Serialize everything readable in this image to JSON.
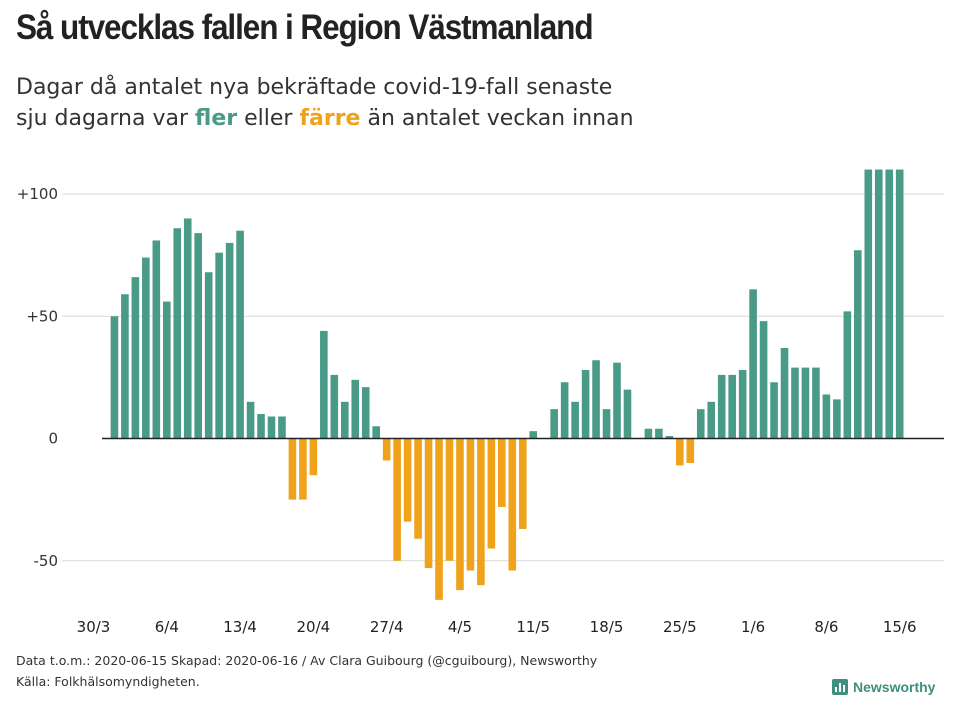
{
  "header": {
    "title": "Så utvecklas fallen i Region Västmanland",
    "subtitle_line1": "Dagar då antalet nya bekräftade covid-19-fall senaste",
    "subtitle_pre": "sju dagarna var ",
    "subtitle_fler": "fler",
    "subtitle_mid": " eller ",
    "subtitle_farre": "färre",
    "subtitle_post": " än antalet veckan innan"
  },
  "colors": {
    "positive": "#4a9a88",
    "negative": "#f0a21a",
    "grid": "#d9d9d9",
    "zero": "#222222"
  },
  "chart_data": {
    "type": "bar",
    "title": "Så utvecklas fallen i Region Västmanland",
    "xlabel": "",
    "ylabel": "",
    "ylim": [
      -67,
      110
    ],
    "yticks": [
      100,
      50,
      0,
      -50
    ],
    "ytick_labels": [
      "+100",
      "+50",
      "0",
      "-50"
    ],
    "xtick_labels": [
      "30/3",
      "6/4",
      "13/4",
      "20/4",
      "27/4",
      "4/5",
      "11/5",
      "18/5",
      "25/5",
      "1/6",
      "8/6",
      "15/6"
    ],
    "xtick_day_index": [
      0,
      7,
      14,
      21,
      28,
      35,
      42,
      49,
      56,
      63,
      70,
      77
    ],
    "start_day_index": 2,
    "values": [
      50,
      59,
      66,
      74,
      81,
      56,
      86,
      90,
      84,
      68,
      76,
      80,
      85,
      15,
      10,
      9,
      9,
      -25,
      -25,
      -15,
      44,
      26,
      15,
      24,
      21,
      5,
      -9,
      -50,
      -34,
      -41,
      -53,
      -66,
      -50,
      -62,
      -54,
      -60,
      -45,
      -28,
      -54,
      -37,
      3,
      0,
      12,
      23,
      15,
      28,
      32,
      12,
      31,
      20,
      0,
      4,
      4,
      1,
      -11,
      -10,
      12,
      15,
      26,
      26,
      28,
      61,
      48,
      23,
      37,
      29,
      29,
      29,
      18,
      16,
      52,
      77,
      110,
      110,
      110,
      110
    ]
  },
  "footer": {
    "line1": "Data t.o.m.: 2020-06-15 Skapad: 2020-06-16 / Av Clara Guibourg (@cguibourg), Newsworthy",
    "line2": "Källa: Folkhälsomyndigheten.",
    "brand": "Newsworthy",
    "brand_icon": "bar-chart-icon"
  }
}
